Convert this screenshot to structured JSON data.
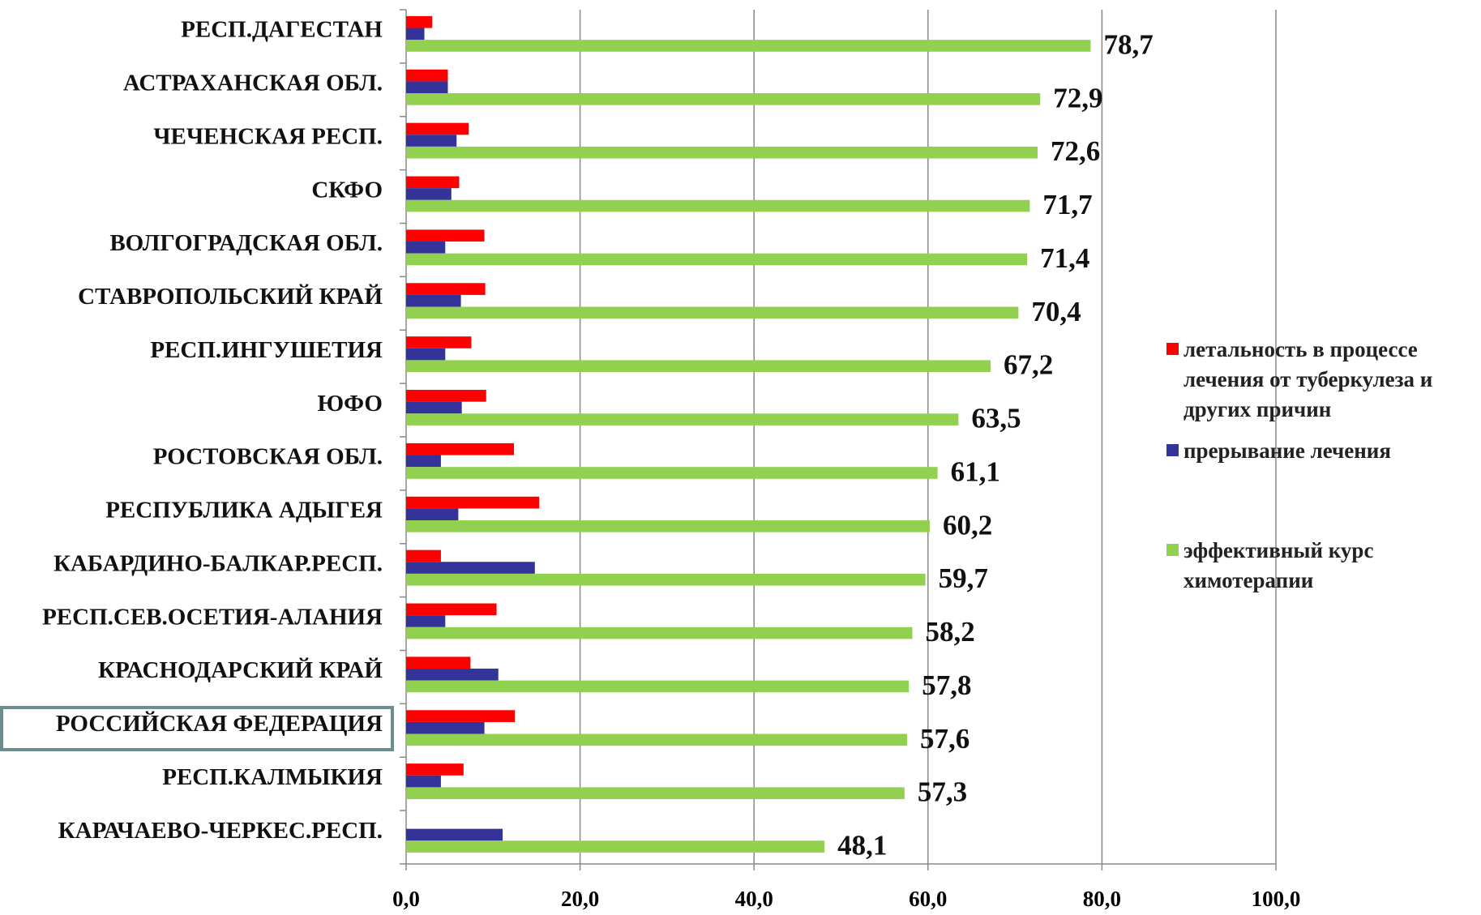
{
  "chart_data": {
    "type": "bar",
    "orientation": "horizontal",
    "categories": [
      "РЕСП.ДАГЕСТАН",
      "АСТРАХАНСКАЯ ОБЛ.",
      "ЧЕЧЕНСКАЯ РЕСП.",
      "СКФО",
      "ВОЛГОГРАДСКАЯ ОБЛ.",
      "СТАВРОПОЛЬСКИЙ КРАЙ",
      "РЕСП.ИНГУШЕТИЯ",
      "ЮФО",
      "РОСТОВСКАЯ ОБЛ.",
      "РЕСПУБЛИКА АДЫГЕЯ",
      "КАБАРДИНО-БАЛКАР.РЕСП.",
      "РЕСП.СЕВ.ОСЕТИЯ-АЛАНИЯ",
      "КРАСНОДАРСКИЙ КРАЙ",
      "РОССИЙСКАЯ ФЕДЕРАЦИЯ",
      "РЕСП.КАЛМЫКИЯ",
      "КАРАЧАЕВО-ЧЕРКЕС.РЕСП."
    ],
    "series": [
      {
        "name": "летальность в процессе лечения от туберкулеза и других причин",
        "color": "#ff0000",
        "values": [
          3.0,
          4.8,
          7.2,
          6.1,
          9.0,
          9.1,
          7.5,
          9.2,
          12.4,
          15.3,
          4.0,
          10.4,
          7.4,
          12.5,
          6.6,
          null
        ]
      },
      {
        "name": "прерывание лечения",
        "color": "#333399",
        "values": [
          2.1,
          4.8,
          5.8,
          5.2,
          4.5,
          6.3,
          4.5,
          6.4,
          4.0,
          6.0,
          14.8,
          4.5,
          10.6,
          9.0,
          4.0,
          11.1
        ]
      },
      {
        "name": "эффективный курс химотерапии",
        "color": "#92d050",
        "values": [
          78.7,
          72.9,
          72.6,
          71.7,
          71.4,
          70.4,
          67.2,
          63.5,
          61.1,
          60.2,
          59.7,
          58.2,
          57.8,
          57.6,
          57.3,
          48.1
        ],
        "value_labels": [
          "78,7",
          "72,9",
          "72,6",
          "71,7",
          "71,4",
          "70,4",
          "67,2",
          "63,5",
          "61,1",
          "60,2",
          "59,7",
          "58,2",
          "57,8",
          "57,6",
          "57,3",
          "48,1"
        ]
      }
    ],
    "xlim": [
      0,
      100
    ],
    "xticks": [
      {
        "value": 0,
        "label": "0,0"
      },
      {
        "value": 20,
        "label": "20,0"
      },
      {
        "value": 40,
        "label": "40,0"
      },
      {
        "value": 60,
        "label": "60,0"
      },
      {
        "value": 80,
        "label": "80,0"
      },
      {
        "value": 100,
        "label": "100,0"
      }
    ],
    "grid": true,
    "legend": "right"
  }
}
